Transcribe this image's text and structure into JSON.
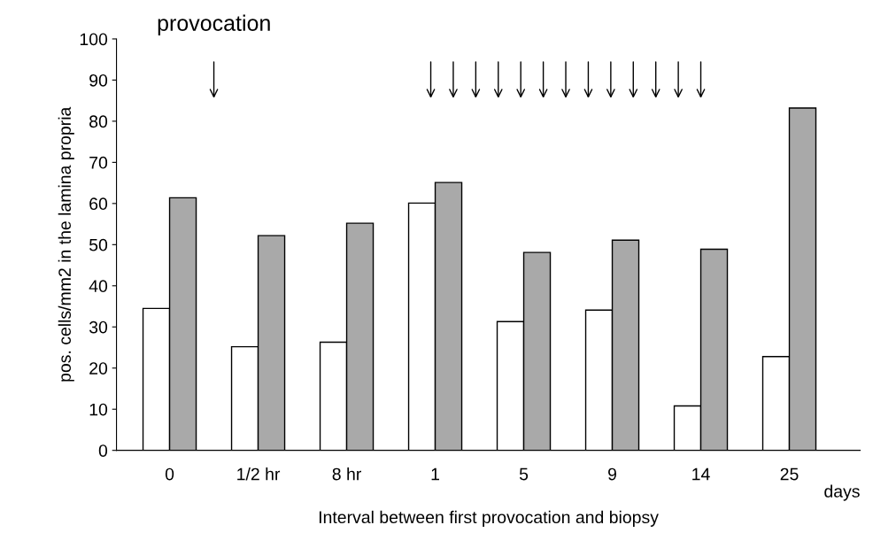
{
  "chart_data": {
    "type": "bar",
    "xlabel": "Interval between first provocation and biopsy",
    "ylabel": "pos. cells/mm2 in the lamina propria",
    "categories": [
      "0",
      "1/2 hr",
      "8 hr",
      "1",
      "5",
      "9",
      "14",
      "25"
    ],
    "series": [
      {
        "color": "#ffffff",
        "values": [
          34.5,
          25.2,
          26.3,
          60.1,
          31.3,
          34.1,
          10.8,
          22.8
        ]
      },
      {
        "color": "#a9a9a9",
        "values": [
          61.4,
          52.2,
          55.2,
          65.1,
          48.1,
          51.1,
          48.9,
          83.2
        ]
      }
    ],
    "ylim": [
      0,
      100
    ],
    "yticks": [
      0,
      10,
      20,
      30,
      40,
      50,
      60,
      70,
      80,
      90,
      100
    ],
    "grid": false,
    "legend": false,
    "annotations": [
      "provocation",
      "days"
    ]
  }
}
